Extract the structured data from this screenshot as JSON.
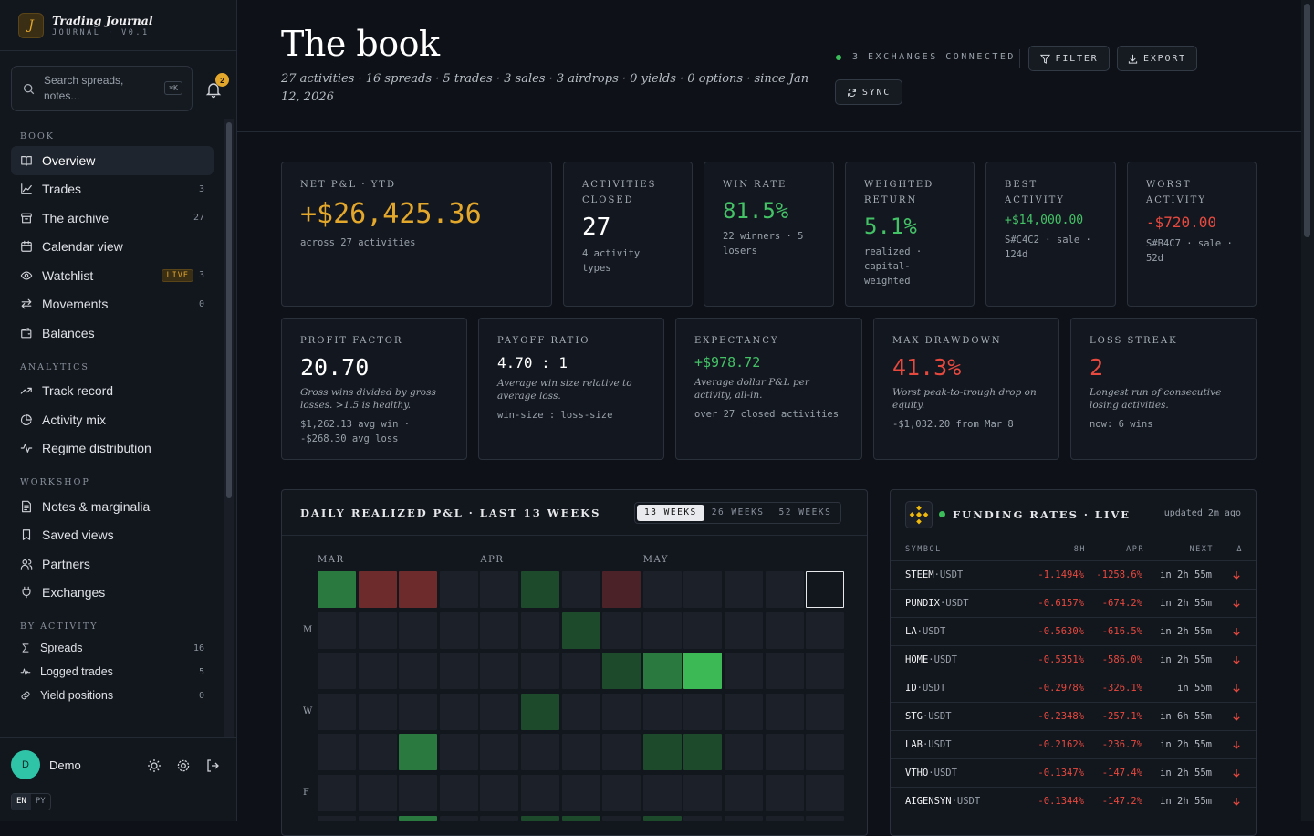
{
  "app": {
    "title": "Trading Journal",
    "subtitle": "JOURNAL · V0.1",
    "logo_letter": "J"
  },
  "search": {
    "placeholder": "Search spreads, notes...",
    "shortcut": "⌘K"
  },
  "notifications": {
    "count": "2"
  },
  "sidebar": {
    "sections": [
      {
        "label": "BOOK",
        "items": [
          {
            "label": "Overview",
            "icon": "book-open-icon",
            "active": true
          },
          {
            "label": "Trades",
            "icon": "chart-line-icon",
            "count": "3"
          },
          {
            "label": "The archive",
            "icon": "archive-icon",
            "count": "27"
          },
          {
            "label": "Calendar view",
            "icon": "calendar-icon"
          },
          {
            "label": "Watchlist",
            "icon": "eye-icon",
            "badge": "LIVE",
            "count": "3"
          },
          {
            "label": "Movements",
            "icon": "arrows-exchange-icon",
            "count": "0"
          },
          {
            "label": "Balances",
            "icon": "wallet-icon"
          }
        ]
      },
      {
        "label": "ANALYTICS",
        "items": [
          {
            "label": "Track record",
            "icon": "trending-up-icon"
          },
          {
            "label": "Activity mix",
            "icon": "pie-chart-icon"
          },
          {
            "label": "Regime distribution",
            "icon": "activity-icon"
          }
        ]
      },
      {
        "label": "WORKSHOP",
        "items": [
          {
            "label": "Notes & marginalia",
            "icon": "note-icon"
          },
          {
            "label": "Saved views",
            "icon": "bookmark-icon"
          },
          {
            "label": "Partners",
            "icon": "users-icon"
          },
          {
            "label": "Exchanges",
            "icon": "plug-icon"
          }
        ]
      },
      {
        "label": "BY ACTIVITY",
        "small": true,
        "items": [
          {
            "label": "Spreads",
            "icon": "sigma-icon",
            "count": "16"
          },
          {
            "label": "Logged trades",
            "icon": "pulse-icon",
            "count": "5"
          },
          {
            "label": "Yield positions",
            "icon": "link-icon",
            "count": "0"
          }
        ]
      }
    ]
  },
  "user": {
    "initial": "D",
    "name": "Demo"
  },
  "language": {
    "options": [
      "EN",
      "PY"
    ],
    "selected": "EN"
  },
  "header": {
    "title": "The book",
    "subtitle": "27 activities · 16 spreads · 5 trades · 3 sales · 3 airdrops · 0 yields · 0 options · since Jan 12, 2026",
    "connected": "3 EXCHANGES CONNECTED",
    "buttons": {
      "filter": "FILTER",
      "export": "EXPORT",
      "sync": "SYNC"
    }
  },
  "stats_top": [
    {
      "label": "NET P&L · YTD",
      "value": "+$26,425.36",
      "note": "across 27 activities",
      "tone": "gold"
    },
    {
      "label": "ACTIVITIES CLOSED",
      "value": "27",
      "note": "4 activity types",
      "tone": "white"
    },
    {
      "label": "WIN RATE",
      "value": "81.5%",
      "note": "22 winners · 5 losers",
      "tone": "green"
    },
    {
      "label": "WEIGHTED RETURN",
      "value": "5.1%",
      "note": "realized · capital-weighted",
      "tone": "green"
    },
    {
      "label": "BEST ACTIVITY",
      "value": "+$14,000.00",
      "note": "S#C4C2 · sale · 124d",
      "tone": "green"
    },
    {
      "label": "WORST ACTIVITY",
      "value": "-$720.00",
      "note": "S#B4C7 · sale · 52d",
      "tone": "red"
    }
  ],
  "stats_bottom": [
    {
      "label": "PROFIT FACTOR",
      "value": "20.70",
      "desc": "Gross wins divided by gross losses. >1.5 is healthy.",
      "note": "$1,262.13 avg win · -$268.30 avg loss",
      "tone": "white"
    },
    {
      "label": "PAYOFF RATIO",
      "value": "4.70 : 1",
      "desc": "Average win size relative to average loss.",
      "note": "win-size : loss-size",
      "tone": "white"
    },
    {
      "label": "EXPECTANCY",
      "value": "+$978.72",
      "desc": "Average dollar P&L per activity, all-in.",
      "note": "over 27 closed activities",
      "tone": "green"
    },
    {
      "label": "MAX DRAWDOWN",
      "value": "41.3%",
      "desc": "Worst peak-to-trough drop on equity.",
      "note": "-$1,032.20 from Mar 8",
      "tone": "red"
    },
    {
      "label": "LOSS STREAK",
      "value": "2",
      "desc": "Longest run of consecutive losing activities.",
      "note": "now: 6 wins",
      "tone": "red"
    }
  ],
  "heatmap": {
    "title": "DAILY REALIZED P&L · LAST 13 WEEKS",
    "ranges": [
      "13 WEEKS",
      "26 WEEKS",
      "52 WEEKS"
    ],
    "selected_range": "13 WEEKS",
    "months": [
      {
        "label": "MAR",
        "week": 0
      },
      {
        "label": "APR",
        "week": 4
      },
      {
        "label": "MAY",
        "week": 8
      }
    ],
    "day_labels": [
      {
        "label": "M",
        "row": 1
      },
      {
        "label": "W",
        "row": 3
      },
      {
        "label": "F",
        "row": 5
      }
    ],
    "colors": {
      "empty": "#1c2129",
      "g1": "#1d4a2b",
      "g2": "#2a7a3f",
      "g3": "#3cb954",
      "r1": "#4a2227",
      "r2": "#6e2b2b",
      "highlight": "#e6e8eb"
    },
    "cells": [
      {
        "w": 0,
        "d": 0,
        "level": "g2"
      },
      {
        "w": 1,
        "d": 0,
        "level": "r2"
      },
      {
        "w": 2,
        "d": 0,
        "level": "r2"
      },
      {
        "w": 5,
        "d": 0,
        "level": "g1"
      },
      {
        "w": 7,
        "d": 0,
        "level": "r1"
      },
      {
        "w": 6,
        "d": 1,
        "level": "g1"
      },
      {
        "w": 7,
        "d": 2,
        "level": "g1"
      },
      {
        "w": 8,
        "d": 2,
        "level": "g2"
      },
      {
        "w": 9,
        "d": 2,
        "level": "g3"
      },
      {
        "w": 5,
        "d": 3,
        "level": "g1"
      },
      {
        "w": 2,
        "d": 4,
        "level": "g2"
      },
      {
        "w": 8,
        "d": 4,
        "level": "g1"
      },
      {
        "w": 9,
        "d": 4,
        "level": "g1"
      },
      {
        "w": 2,
        "d": 6,
        "level": "g2"
      },
      {
        "w": 5,
        "d": 6,
        "level": "g1"
      },
      {
        "w": 6,
        "d": 6,
        "level": "g1"
      },
      {
        "w": 8,
        "d": 6,
        "level": "g1"
      }
    ],
    "today": {
      "w": 12,
      "d": 0
    }
  },
  "funding": {
    "title": "FUNDING RATES · LIVE",
    "updated": "updated 2m ago",
    "columns": [
      "SYMBOL",
      "8H",
      "APR",
      "NEXT",
      "Δ"
    ],
    "rows": [
      {
        "base": "STEEM",
        "quote": "·USDT",
        "rate": "-1.1494%",
        "apr": "-1258.6%",
        "next": "in 2h 55m"
      },
      {
        "base": "PUNDIX",
        "quote": "·USDT",
        "rate": "-0.6157%",
        "apr": "-674.2%",
        "next": "in 2h 55m"
      },
      {
        "base": "LA",
        "quote": "·USDT",
        "rate": "-0.5630%",
        "apr": "-616.5%",
        "next": "in 2h 55m"
      },
      {
        "base": "HOME",
        "quote": "·USDT",
        "rate": "-0.5351%",
        "apr": "-586.0%",
        "next": "in 2h 55m"
      },
      {
        "base": "ID",
        "quote": "·USDT",
        "rate": "-0.2978%",
        "apr": "-326.1%",
        "next": "in 55m"
      },
      {
        "base": "STG",
        "quote": "·USDT",
        "rate": "-0.2348%",
        "apr": "-257.1%",
        "next": "in 6h 55m"
      },
      {
        "base": "LAB",
        "quote": "·USDT",
        "rate": "-0.2162%",
        "apr": "-236.7%",
        "next": "in 2h 55m"
      },
      {
        "base": "VTHO",
        "quote": "·USDT",
        "rate": "-0.1347%",
        "apr": "-147.4%",
        "next": "in 2h 55m"
      },
      {
        "base": "AIGENSYN",
        "quote": "·USDT",
        "rate": "-0.1344%",
        "apr": "-147.2%",
        "next": "in 2h 55m"
      }
    ]
  },
  "colors": {
    "accent": "#e3a72c",
    "positive": "#44c266",
    "negative": "#e8493f",
    "bg": "#0e1218"
  }
}
